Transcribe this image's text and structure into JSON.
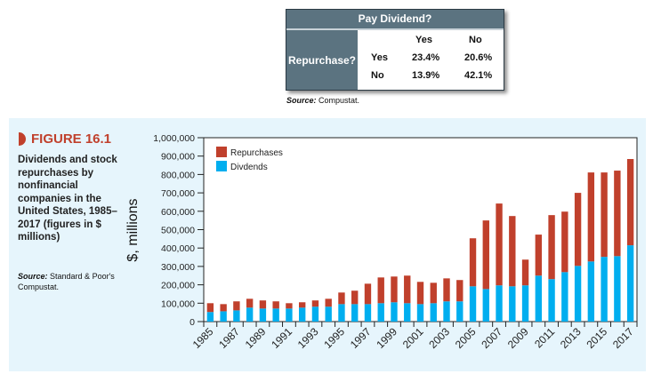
{
  "table": {
    "header": "Pay Dividend?",
    "row_header": "Repurchase?",
    "col_labels": [
      "Yes",
      "No"
    ],
    "rows": [
      {
        "label": "Yes",
        "values": [
          "23.4%",
          "20.6%"
        ]
      },
      {
        "label": "No",
        "values": [
          "13.9%",
          "42.1%"
        ]
      }
    ],
    "source_label": "Source:",
    "source_text": "Compustat."
  },
  "figure": {
    "number": "FIGURE 16.1",
    "caption": "Dividends and stock repurchases by nonfinancial companies in the United States, 1985–2017 (figures in $ millions)",
    "source_label": "Source:",
    "source_text": "Standard & Poor's Compustat."
  },
  "colors": {
    "repurchases": "#c0402c",
    "dividends": "#00aeef",
    "accent": "#c0402c",
    "panel": "#e6f5fc"
  },
  "chart_data": {
    "type": "bar",
    "stacked": true,
    "title": "",
    "xlabel": "",
    "ylabel": "$, millions",
    "ylim": [
      0,
      1000000
    ],
    "yticks": [
      "0",
      "100,000",
      "200,000",
      "300,000",
      "400,000",
      "500,000",
      "600,000",
      "700,000",
      "800,000",
      "900,000",
      "1,000,000"
    ],
    "legend_position": "top-left",
    "categories": [
      "1985",
      "1986",
      "1987",
      "1988",
      "1989",
      "1990",
      "1991",
      "1992",
      "1993",
      "1994",
      "1995",
      "1996",
      "1997",
      "1998",
      "1999",
      "2000",
      "2001",
      "2002",
      "2003",
      "2004",
      "2005",
      "2006",
      "2007",
      "2008",
      "2009",
      "2010",
      "2011",
      "2012",
      "2013",
      "2014",
      "2015",
      "2016",
      "2017"
    ],
    "xtick_labels": [
      "1985",
      "1987",
      "1989",
      "1991",
      "1993",
      "1995",
      "1997",
      "1999",
      "2001",
      "2003",
      "2005",
      "2007",
      "2009",
      "2011",
      "2013",
      "2015",
      "2017"
    ],
    "series": [
      {
        "name": "Divdends",
        "values": [
          52000,
          56000,
          61000,
          76000,
          71000,
          71000,
          71000,
          76000,
          81000,
          81000,
          95000,
          95000,
          95000,
          100000,
          105000,
          100000,
          95000,
          100000,
          110000,
          110000,
          192000,
          177000,
          197000,
          192000,
          197000,
          250000,
          231000,
          269000,
          303000,
          327000,
          352000,
          356000,
          415000
        ]
      },
      {
        "name": "Repurchases",
        "values": [
          48000,
          39000,
          49000,
          48000,
          44000,
          39000,
          29000,
          29000,
          34000,
          43000,
          63000,
          73000,
          111000,
          140000,
          140000,
          150000,
          121000,
          111000,
          125000,
          116000,
          261000,
          373000,
          445000,
          382000,
          140000,
          223000,
          348000,
          329000,
          397000,
          484000,
          459000,
          465000,
          469000
        ]
      }
    ]
  }
}
